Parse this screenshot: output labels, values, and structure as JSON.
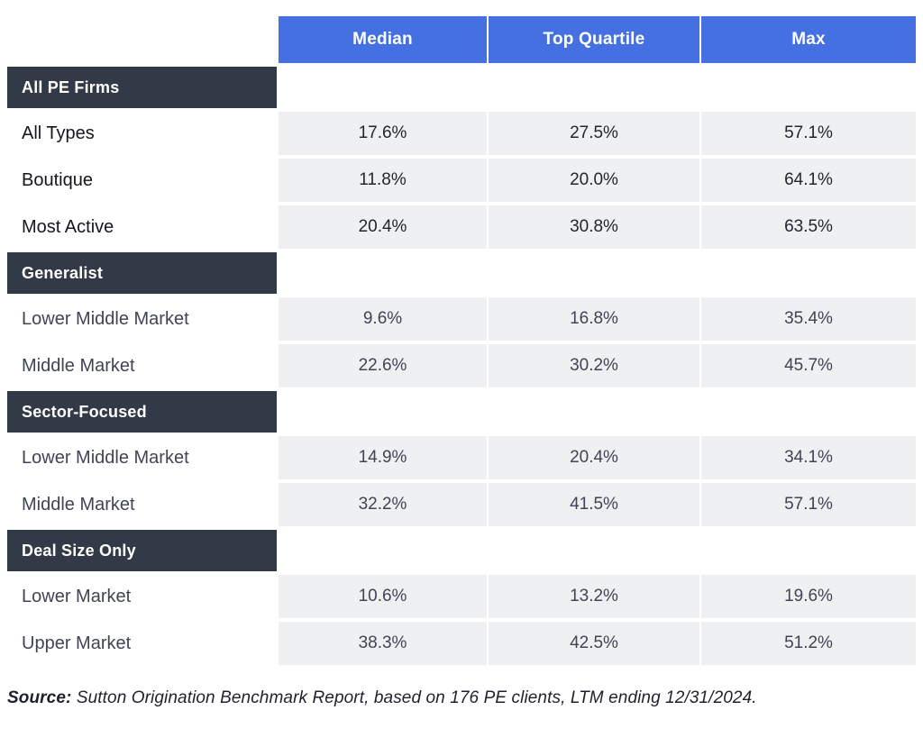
{
  "colors": {
    "header_blue": "#4470E2",
    "section_dark": "#333A47",
    "cell_gray": "#EFF0F2",
    "text_strong": "#15171C",
    "text_muted": "#3F4555"
  },
  "chart_data": {
    "type": "table",
    "column_headers": [
      "Median",
      "Top Quartile",
      "Max"
    ],
    "sections": [
      {
        "header": "All PE Firms",
        "emphasis": "strong",
        "rows": [
          {
            "label": "All Types",
            "values": [
              "17.6%",
              "27.5%",
              "57.1%"
            ]
          },
          {
            "label": "Boutique",
            "values": [
              "11.8%",
              "20.0%",
              "64.1%"
            ]
          },
          {
            "label": "Most Active",
            "values": [
              "20.4%",
              "30.8%",
              "63.5%"
            ]
          }
        ]
      },
      {
        "header": "Generalist",
        "emphasis": "muted",
        "rows": [
          {
            "label": "Lower Middle Market",
            "values": [
              "9.6%",
              "16.8%",
              "35.4%"
            ]
          },
          {
            "label": "Middle Market",
            "values": [
              "22.6%",
              "30.2%",
              "45.7%"
            ]
          }
        ]
      },
      {
        "header": "Sector-Focused",
        "emphasis": "muted",
        "rows": [
          {
            "label": "Lower Middle Market",
            "values": [
              "14.9%",
              "20.4%",
              "34.1%"
            ]
          },
          {
            "label": "Middle Market",
            "values": [
              "32.2%",
              "41.5%",
              "57.1%"
            ]
          }
        ]
      },
      {
        "header": "Deal Size Only",
        "emphasis": "muted",
        "rows": [
          {
            "label": "Lower Market",
            "values": [
              "10.6%",
              "13.2%",
              "19.6%"
            ]
          },
          {
            "label": "Upper Market",
            "values": [
              "38.3%",
              "42.5%",
              "51.2%"
            ]
          }
        ]
      }
    ],
    "source_note": "Source: Sutton Origination Benchmark Report, based on 176 PE clients, LTM ending 12/31/2024."
  },
  "footer": {
    "source_label": "Source:",
    "source_text": " Sutton Origination Benchmark Report, based on 176 PE clients, LTM ending 12/31/2024."
  }
}
